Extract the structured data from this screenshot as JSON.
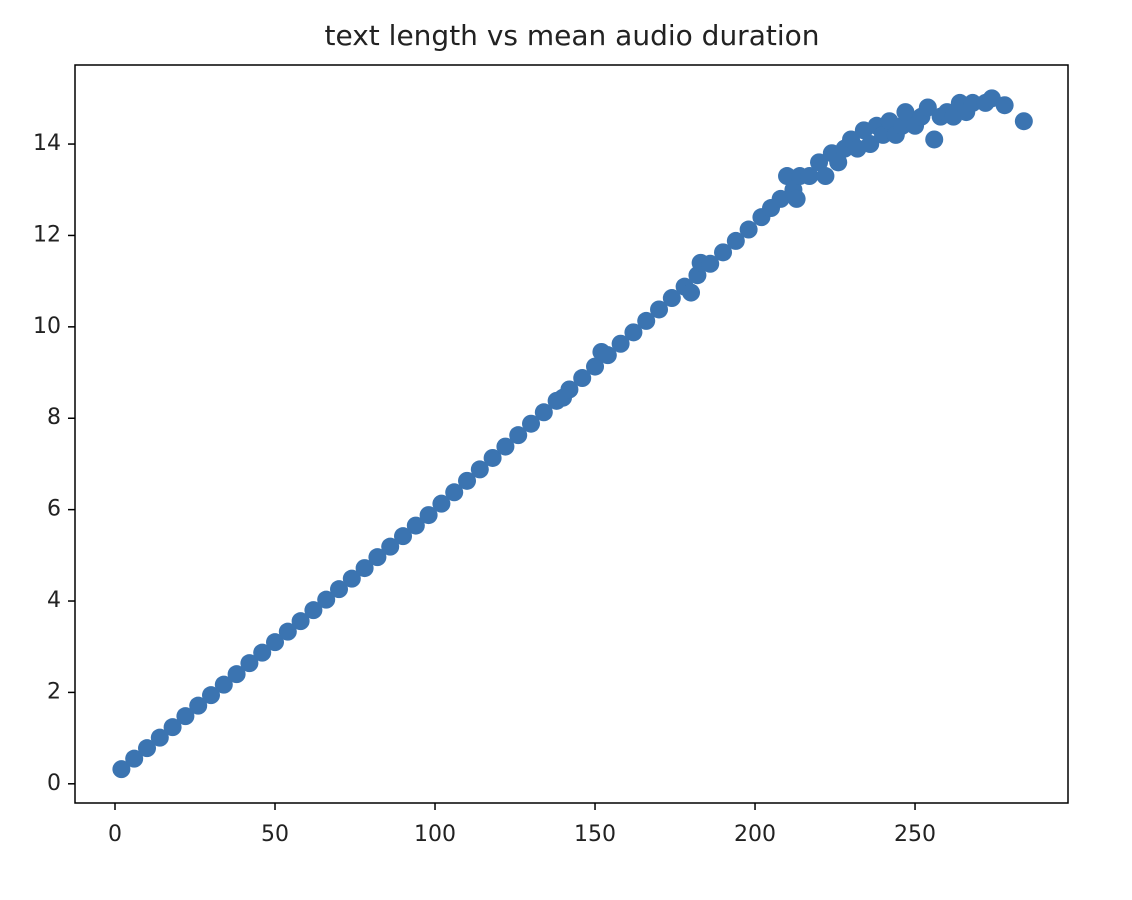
{
  "chart_data": {
    "type": "scatter",
    "title": "text length vs mean audio duration",
    "color": "#3b74b1",
    "x": [
      2,
      6,
      10,
      14,
      18,
      22,
      26,
      30,
      34,
      38,
      42,
      46,
      50,
      54,
      58,
      62,
      66,
      70,
      74,
      78,
      82,
      86,
      90,
      94,
      98,
      102,
      106,
      110,
      114,
      118,
      122,
      126,
      130,
      134,
      138,
      140,
      142,
      146,
      150,
      152,
      154,
      158,
      162,
      166,
      170,
      174,
      178,
      180,
      182,
      183,
      186,
      190,
      194,
      198,
      202,
      205,
      208,
      210,
      212,
      213,
      214,
      217,
      220,
      222,
      224,
      226,
      228,
      230,
      232,
      234,
      236,
      238,
      240,
      242,
      244,
      246,
      247,
      250,
      252,
      254,
      256,
      258,
      260,
      262,
      264,
      266,
      268,
      272,
      274,
      278,
      284
    ],
    "values": [
      0.32,
      0.55,
      0.78,
      1.01,
      1.24,
      1.48,
      1.71,
      1.94,
      2.17,
      2.4,
      2.64,
      2.87,
      3.1,
      3.33,
      3.56,
      3.8,
      4.03,
      4.26,
      4.49,
      4.72,
      4.96,
      5.19,
      5.42,
      5.65,
      5.88,
      6.13,
      6.38,
      6.63,
      6.88,
      7.13,
      7.38,
      7.63,
      7.88,
      8.13,
      8.38,
      8.45,
      8.63,
      8.88,
      9.13,
      9.45,
      9.38,
      9.63,
      9.88,
      10.13,
      10.38,
      10.63,
      10.88,
      10.75,
      11.13,
      11.4,
      11.38,
      11.63,
      11.88,
      12.13,
      12.4,
      12.6,
      12.8,
      13.3,
      13.0,
      12.8,
      13.3,
      13.3,
      13.6,
      13.3,
      13.8,
      13.6,
      13.9,
      14.1,
      13.9,
      14.3,
      14.0,
      14.4,
      14.2,
      14.5,
      14.2,
      14.4,
      14.7,
      14.4,
      14.6,
      14.8,
      14.1,
      14.6,
      14.7,
      14.6,
      14.9,
      14.7,
      14.9,
      14.9,
      15.0,
      14.85,
      14.5
    ],
    "xlim": [
      -12.5,
      297.8
    ],
    "ylim": [
      -0.42,
      15.73
    ],
    "xticks": [
      0,
      50,
      100,
      150,
      200,
      250
    ],
    "yticks": [
      0,
      2,
      4,
      6,
      8,
      10,
      12,
      14
    ]
  }
}
